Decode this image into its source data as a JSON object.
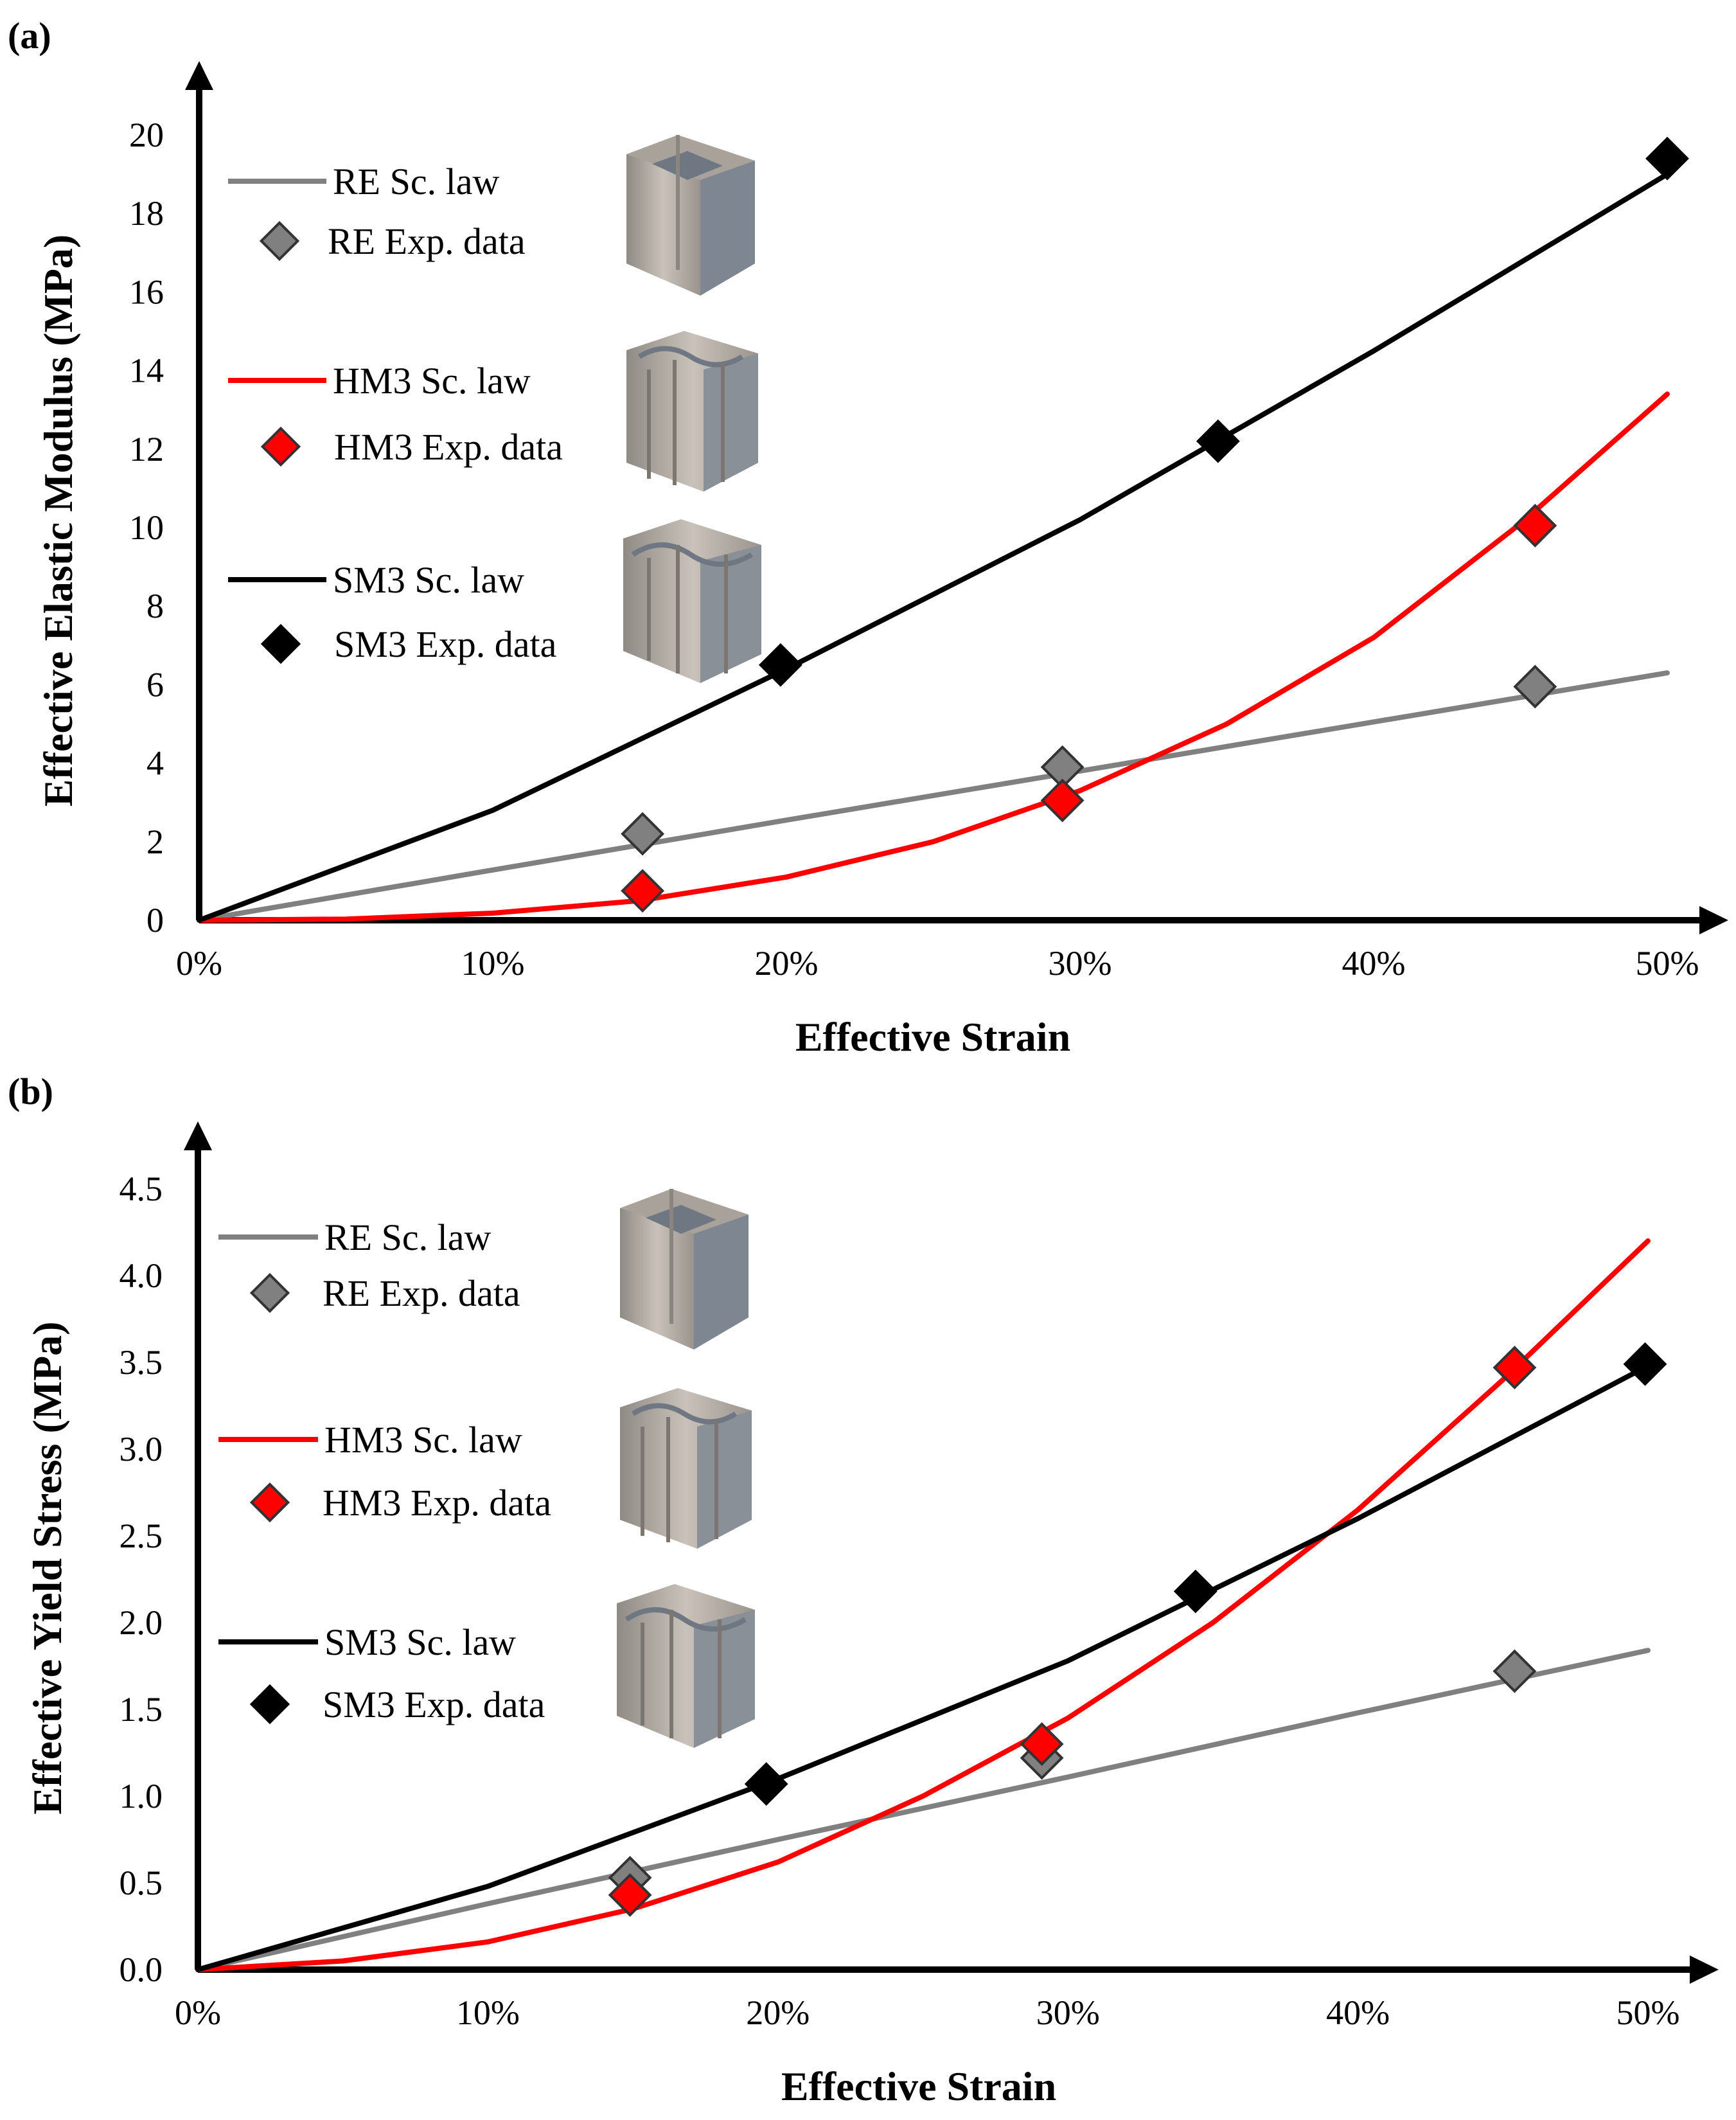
{
  "chart_data": [
    {
      "type": "line",
      "panel_label": "(a)",
      "xlabel": "Effective Strain",
      "ylabel": "Effective Elastic Modulus (MPa)",
      "xlim": [
        0,
        50
      ],
      "ylim": [
        0,
        20
      ],
      "x_ticks": [
        "0%",
        "10%",
        "20%",
        "30%",
        "40%",
        "50%"
      ],
      "y_ticks": [
        "0",
        "2",
        "4",
        "6",
        "8",
        "10",
        "12",
        "14",
        "16",
        "18",
        "20"
      ],
      "legend": {
        "placement": "top-left",
        "entries": [
          "RE Sc. law",
          "RE Exp. data",
          "HM3 Sc. law",
          "HM3 Exp. data",
          "SM3 Sc. law",
          "SM3 Exp. data"
        ]
      },
      "series": [
        {
          "name": "RE Sc. law",
          "kind": "line",
          "color": "#808080",
          "x": [
            0,
            10,
            20,
            30,
            40,
            50
          ],
          "y": [
            0,
            1.28,
            2.55,
            3.8,
            5.05,
            6.3
          ]
        },
        {
          "name": "HM3 Sc. law",
          "kind": "line",
          "color": "#ff0000",
          "x": [
            0,
            5,
            10,
            15,
            20,
            25,
            30,
            35,
            40,
            45,
            50
          ],
          "y": [
            0,
            0.03,
            0.18,
            0.5,
            1.1,
            2.0,
            3.3,
            5.0,
            7.2,
            10.1,
            13.4
          ]
        },
        {
          "name": "SM3 Sc. law",
          "kind": "line",
          "color": "#000000",
          "x": [
            0,
            10,
            20,
            30,
            40,
            50
          ],
          "y": [
            0,
            2.8,
            6.4,
            10.2,
            14.5,
            19.0
          ]
        },
        {
          "name": "RE Exp. data",
          "kind": "marker",
          "color": "#808080",
          "x": [
            15.1,
            29.4,
            45.5
          ],
          "y": [
            2.2,
            3.9,
            5.95
          ]
        },
        {
          "name": "HM3 Exp. data",
          "kind": "marker",
          "color": "#ff0000",
          "x": [
            15.1,
            29.4,
            45.5
          ],
          "y": [
            0.75,
            3.05,
            10.05
          ]
        },
        {
          "name": "SM3 Exp. data",
          "kind": "marker",
          "color": "#000000",
          "x": [
            19.8,
            34.7,
            50.0
          ],
          "y": [
            6.5,
            12.2,
            19.4
          ]
        }
      ]
    },
    {
      "type": "line",
      "panel_label": "(b)",
      "xlabel": "Effective Strain",
      "ylabel": "Effective Yield Stress (MPa)",
      "xlim": [
        0,
        50
      ],
      "ylim": [
        0,
        4.5
      ],
      "x_ticks": [
        "0%",
        "10%",
        "20%",
        "30%",
        "40%",
        "50%"
      ],
      "y_ticks": [
        "0.0",
        "0.5",
        "1.0",
        "1.5",
        "2.0",
        "2.5",
        "3.0",
        "3.5",
        "4.0",
        "4.5"
      ],
      "legend": {
        "placement": "top-left",
        "entries": [
          "RE Sc. law",
          "RE Exp. data",
          "HM3 Sc. law",
          "HM3 Exp. data",
          "SM3 Sc. law",
          "SM3 Exp. data"
        ]
      },
      "series": [
        {
          "name": "RE Sc. law",
          "kind": "line",
          "color": "#808080",
          "x": [
            0,
            10,
            20,
            30,
            40,
            50
          ],
          "y": [
            0,
            0.38,
            0.75,
            1.11,
            1.48,
            1.84
          ]
        },
        {
          "name": "HM3 Sc. law",
          "kind": "line",
          "color": "#ff0000",
          "x": [
            0,
            5,
            10,
            15,
            20,
            25,
            30,
            35,
            40,
            45,
            50
          ],
          "y": [
            0,
            0.05,
            0.16,
            0.35,
            0.62,
            1.0,
            1.45,
            2.0,
            2.65,
            3.4,
            4.2
          ]
        },
        {
          "name": "SM3 Sc. law",
          "kind": "line",
          "color": "#000000",
          "x": [
            0,
            10,
            20,
            30,
            40,
            50
          ],
          "y": [
            0,
            0.48,
            1.1,
            1.78,
            2.6,
            3.48
          ]
        },
        {
          "name": "RE Exp. data",
          "kind": "marker",
          "color": "#808080",
          "x": [
            14.9,
            29.1,
            45.4
          ],
          "y": [
            0.53,
            1.22,
            1.72
          ]
        },
        {
          "name": "HM3 Exp. data",
          "kind": "marker",
          "color": "#ff0000",
          "x": [
            14.9,
            29.1,
            45.4
          ],
          "y": [
            0.43,
            1.3,
            3.47
          ]
        },
        {
          "name": "SM3 Exp. data",
          "kind": "marker",
          "color": "#000000",
          "x": [
            19.6,
            34.4,
            49.9
          ],
          "y": [
            1.07,
            2.18,
            3.49
          ]
        }
      ]
    }
  ]
}
